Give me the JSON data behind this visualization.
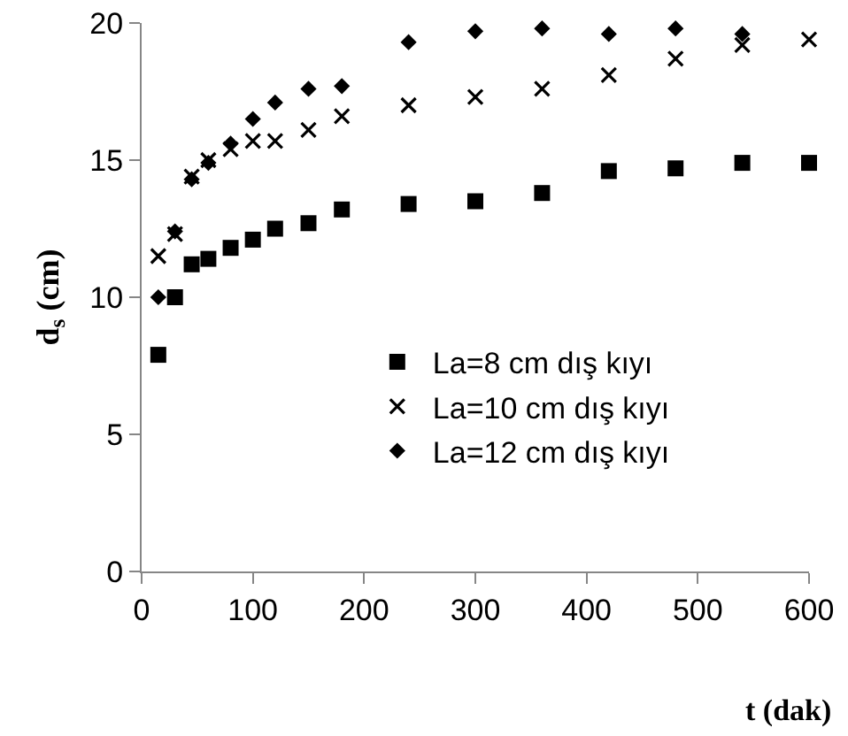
{
  "chart_data": {
    "type": "scatter",
    "xlabel": "t (dak)",
    "ylabel": "d$_{s}$ (cm)",
    "x": [
      15,
      30,
      45,
      60,
      80,
      100,
      120,
      150,
      180,
      240,
      300,
      360,
      420,
      480,
      540,
      600
    ],
    "series": [
      {
        "name": "La=8 cm dış kıyı",
        "color": "#000000",
        "marker": "square",
        "values": [
          7.9,
          10.0,
          11.2,
          11.4,
          11.8,
          12.1,
          12.5,
          12.7,
          13.2,
          13.4,
          13.5,
          13.8,
          14.6,
          14.7,
          14.9,
          14.9
        ]
      },
      {
        "name": "La=10 cm dış kıyı",
        "color": "#000000",
        "marker": "cross",
        "values": [
          11.5,
          12.3,
          14.4,
          15.0,
          15.4,
          15.7,
          15.7,
          16.1,
          16.6,
          17.0,
          17.3,
          17.6,
          18.1,
          18.7,
          19.2,
          19.4
        ]
      },
      {
        "name": "La=12 cm dış kıyı",
        "color": "#000000",
        "marker": "diamond",
        "values": [
          10.0,
          12.4,
          14.3,
          14.9,
          15.6,
          16.5,
          17.1,
          17.6,
          17.7,
          19.3,
          19.7,
          19.8,
          19.6,
          19.8,
          19.6,
          null
        ]
      }
    ],
    "xlim": [
      0,
      600
    ],
    "xticks": [
      0,
      100,
      200,
      300,
      400,
      500,
      600
    ],
    "ylim": [
      0,
      20
    ],
    "yticks": [
      0,
      5,
      10,
      15,
      20
    ],
    "grid": false,
    "legend": "right"
  }
}
